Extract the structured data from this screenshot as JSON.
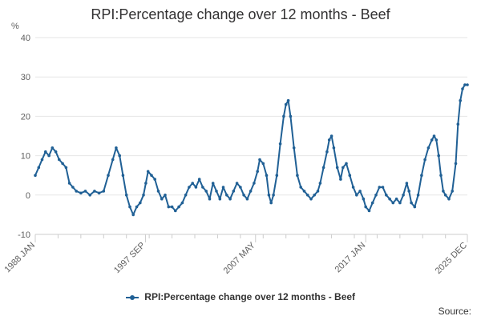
{
  "chart_data": {
    "type": "line",
    "title": "RPI:Percentage change over 12 months - Beef",
    "ylabel": "%",
    "xlabel": "",
    "ylim": [
      -10,
      40
    ],
    "yticks": [
      -10,
      0,
      10,
      20,
      30,
      40
    ],
    "grid": true,
    "legend_position": "bottom-center",
    "x_start_year": 1988,
    "x_end_year": 2025.92,
    "x_tick_labels": [
      {
        "label": "1988 JAN",
        "year": 1988.0
      },
      {
        "label": "1997 SEP",
        "year": 1997.67
      },
      {
        "label": "2007 MAY",
        "year": 2007.33
      },
      {
        "label": "2017 JAN",
        "year": 2017.0
      },
      {
        "label": "2025 DEC",
        "year": 2025.92
      }
    ],
    "series": [
      {
        "name": "RPI:Percentage change over 12 months - Beef",
        "color": "#206095",
        "points": [
          [
            1988.0,
            5
          ],
          [
            1988.3,
            7
          ],
          [
            1988.6,
            9
          ],
          [
            1988.9,
            11
          ],
          [
            1989.2,
            10
          ],
          [
            1989.5,
            12
          ],
          [
            1989.8,
            11
          ],
          [
            1990.1,
            9
          ],
          [
            1990.4,
            8
          ],
          [
            1990.7,
            7
          ],
          [
            1991.0,
            3
          ],
          [
            1991.3,
            2
          ],
          [
            1991.6,
            1
          ],
          [
            1992.0,
            0.5
          ],
          [
            1992.4,
            1
          ],
          [
            1992.8,
            0
          ],
          [
            1993.2,
            1
          ],
          [
            1993.6,
            0.5
          ],
          [
            1994.0,
            1
          ],
          [
            1994.4,
            5
          ],
          [
            1994.8,
            9
          ],
          [
            1995.1,
            12
          ],
          [
            1995.4,
            10
          ],
          [
            1995.7,
            5
          ],
          [
            1996.0,
            0
          ],
          [
            1996.3,
            -3
          ],
          [
            1996.6,
            -5
          ],
          [
            1996.9,
            -3
          ],
          [
            1997.2,
            -2
          ],
          [
            1997.5,
            0
          ],
          [
            1997.7,
            3
          ],
          [
            1997.9,
            6
          ],
          [
            1998.2,
            5
          ],
          [
            1998.5,
            4
          ],
          [
            1998.8,
            1
          ],
          [
            1999.1,
            -1
          ],
          [
            1999.4,
            0
          ],
          [
            1999.7,
            -3
          ],
          [
            2000.0,
            -3
          ],
          [
            2000.3,
            -4
          ],
          [
            2000.6,
            -3
          ],
          [
            2000.9,
            -2
          ],
          [
            2001.2,
            0
          ],
          [
            2001.5,
            2
          ],
          [
            2001.8,
            3
          ],
          [
            2002.1,
            2
          ],
          [
            2002.4,
            4
          ],
          [
            2002.7,
            2
          ],
          [
            2003.0,
            1
          ],
          [
            2003.3,
            -1
          ],
          [
            2003.6,
            3
          ],
          [
            2003.9,
            1
          ],
          [
            2004.2,
            -1
          ],
          [
            2004.5,
            2
          ],
          [
            2004.8,
            0
          ],
          [
            2005.1,
            -1
          ],
          [
            2005.4,
            1
          ],
          [
            2005.7,
            3
          ],
          [
            2006.0,
            2
          ],
          [
            2006.3,
            0
          ],
          [
            2006.6,
            -1
          ],
          [
            2006.9,
            1
          ],
          [
            2007.2,
            3
          ],
          [
            2007.5,
            6
          ],
          [
            2007.7,
            9
          ],
          [
            2008.0,
            8
          ],
          [
            2008.3,
            5
          ],
          [
            2008.5,
            0
          ],
          [
            2008.7,
            -2
          ],
          [
            2008.9,
            0
          ],
          [
            2009.2,
            5
          ],
          [
            2009.5,
            13
          ],
          [
            2009.8,
            20
          ],
          [
            2010.0,
            23
          ],
          [
            2010.2,
            24
          ],
          [
            2010.4,
            20
          ],
          [
            2010.7,
            12
          ],
          [
            2011.0,
            5
          ],
          [
            2011.3,
            2
          ],
          [
            2011.6,
            1
          ],
          [
            2011.9,
            0
          ],
          [
            2012.2,
            -1
          ],
          [
            2012.5,
            0
          ],
          [
            2012.8,
            1
          ],
          [
            2013.0,
            3
          ],
          [
            2013.3,
            7
          ],
          [
            2013.6,
            11
          ],
          [
            2013.8,
            14
          ],
          [
            2014.0,
            15
          ],
          [
            2014.2,
            12
          ],
          [
            2014.5,
            7
          ],
          [
            2014.8,
            4
          ],
          [
            2015.0,
            7
          ],
          [
            2015.3,
            8
          ],
          [
            2015.6,
            5
          ],
          [
            2015.9,
            2
          ],
          [
            2016.2,
            0
          ],
          [
            2016.5,
            1
          ],
          [
            2016.8,
            -1
          ],
          [
            2017.0,
            -3
          ],
          [
            2017.3,
            -4
          ],
          [
            2017.6,
            -2
          ],
          [
            2017.9,
            0
          ],
          [
            2018.2,
            2
          ],
          [
            2018.5,
            2
          ],
          [
            2018.8,
            0
          ],
          [
            2019.1,
            -1
          ],
          [
            2019.4,
            -2
          ],
          [
            2019.7,
            -1
          ],
          [
            2020.0,
            -2
          ],
          [
            2020.3,
            0
          ],
          [
            2020.6,
            3
          ],
          [
            2020.8,
            1
          ],
          [
            2021.0,
            -2
          ],
          [
            2021.3,
            -3
          ],
          [
            2021.6,
            0
          ],
          [
            2021.9,
            5
          ],
          [
            2022.2,
            9
          ],
          [
            2022.5,
            12
          ],
          [
            2022.8,
            14
          ],
          [
            2023.0,
            15
          ],
          [
            2023.2,
            14
          ],
          [
            2023.4,
            10
          ],
          [
            2023.6,
            5
          ],
          [
            2023.8,
            1
          ],
          [
            2024.0,
            0
          ],
          [
            2024.3,
            -1
          ],
          [
            2024.6,
            1
          ],
          [
            2024.9,
            8
          ],
          [
            2025.1,
            18
          ],
          [
            2025.3,
            24
          ],
          [
            2025.5,
            27
          ],
          [
            2025.7,
            28
          ],
          [
            2025.92,
            28
          ]
        ]
      }
    ],
    "source_label": "Source:"
  }
}
